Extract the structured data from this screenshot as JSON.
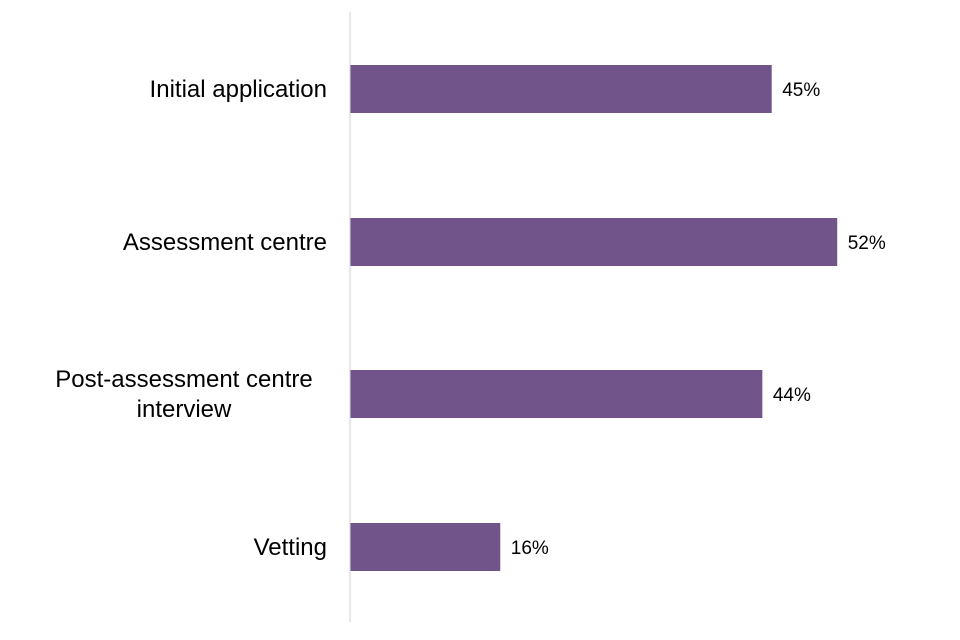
{
  "chart_data": {
    "type": "bar",
    "orientation": "horizontal",
    "categories": [
      [
        "Initial application"
      ],
      [
        "Assessment centre"
      ],
      [
        "Post-assessment centre",
        "interview"
      ],
      [
        "Vetting"
      ]
    ],
    "values": [
      45,
      52,
      44,
      16
    ],
    "value_labels": [
      "45%",
      "52%",
      "44%",
      "16%"
    ],
    "unit": "%",
    "title": "",
    "xlabel": "",
    "ylabel": "",
    "xlim": [
      0,
      60
    ],
    "grid": false,
    "legend": "none",
    "bar_color": "#70548A",
    "axis_color": "#D9D9D9"
  }
}
